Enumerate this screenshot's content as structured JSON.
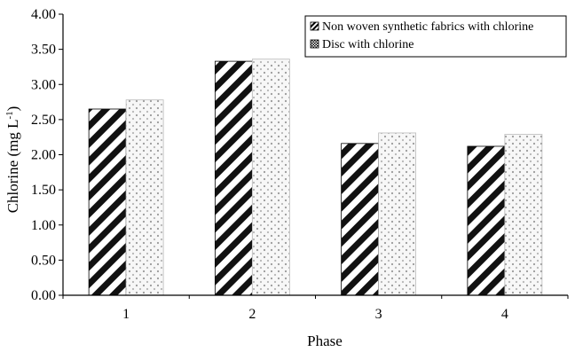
{
  "chart_data": {
    "type": "bar",
    "title": "",
    "xlabel": "Phase",
    "ylabel": "Chlorine (mg L",
    "ylabel_superscript": "-1",
    "ylabel_close": ")",
    "categories": [
      "1",
      "2",
      "3",
      "4"
    ],
    "series": [
      {
        "name": "Non woven synthetic fabrics with chlorine",
        "values": [
          2.65,
          3.33,
          2.16,
          2.12
        ],
        "pattern": "diagonal-stripes"
      },
      {
        "name": "Disc with chlorine",
        "values": [
          2.78,
          3.36,
          2.31,
          2.29
        ],
        "pattern": "dotted"
      }
    ],
    "ylim": [
      0,
      4
    ],
    "yticks": [
      "0.00",
      "0.50",
      "1.00",
      "1.50",
      "2.00",
      "2.50",
      "3.00",
      "3.50",
      "4.00"
    ],
    "grid": false,
    "legend_position": "top-right",
    "colors": {
      "axis": "#000000",
      "stripe_dark": "#111111",
      "stripe_light": "#ffffff",
      "dot": "#9a9a9a"
    }
  }
}
